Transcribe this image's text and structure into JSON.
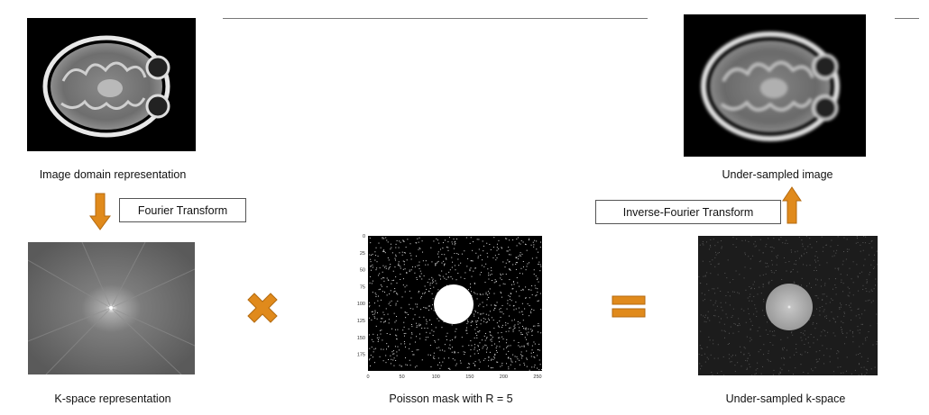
{
  "captions": {
    "image_domain": "Image domain representation",
    "kspace": "K-space representation",
    "poisson_mask": "Poisson mask with R = 5",
    "undersampled_kspace": "Under-sampled k-space",
    "undersampled_image": "Under-sampled image"
  },
  "labels": {
    "fourier": "Fourier Transform",
    "inverse_fourier": "Inverse-Fourier Transform"
  },
  "mask_axes": {
    "y_ticks": [
      "0",
      "25",
      "50",
      "75",
      "100",
      "125",
      "150",
      "175"
    ],
    "x_ticks": [
      "0",
      "50",
      "100",
      "150",
      "200",
      "250"
    ]
  },
  "colors": {
    "arrow": "#e08a1c",
    "arrow_stroke": "#b36a10"
  },
  "icons": {
    "multiply": "multiply-icon",
    "equals": "equals-icon",
    "down_arrow": "arrow-down-icon",
    "up_arrow": "arrow-up-icon"
  }
}
